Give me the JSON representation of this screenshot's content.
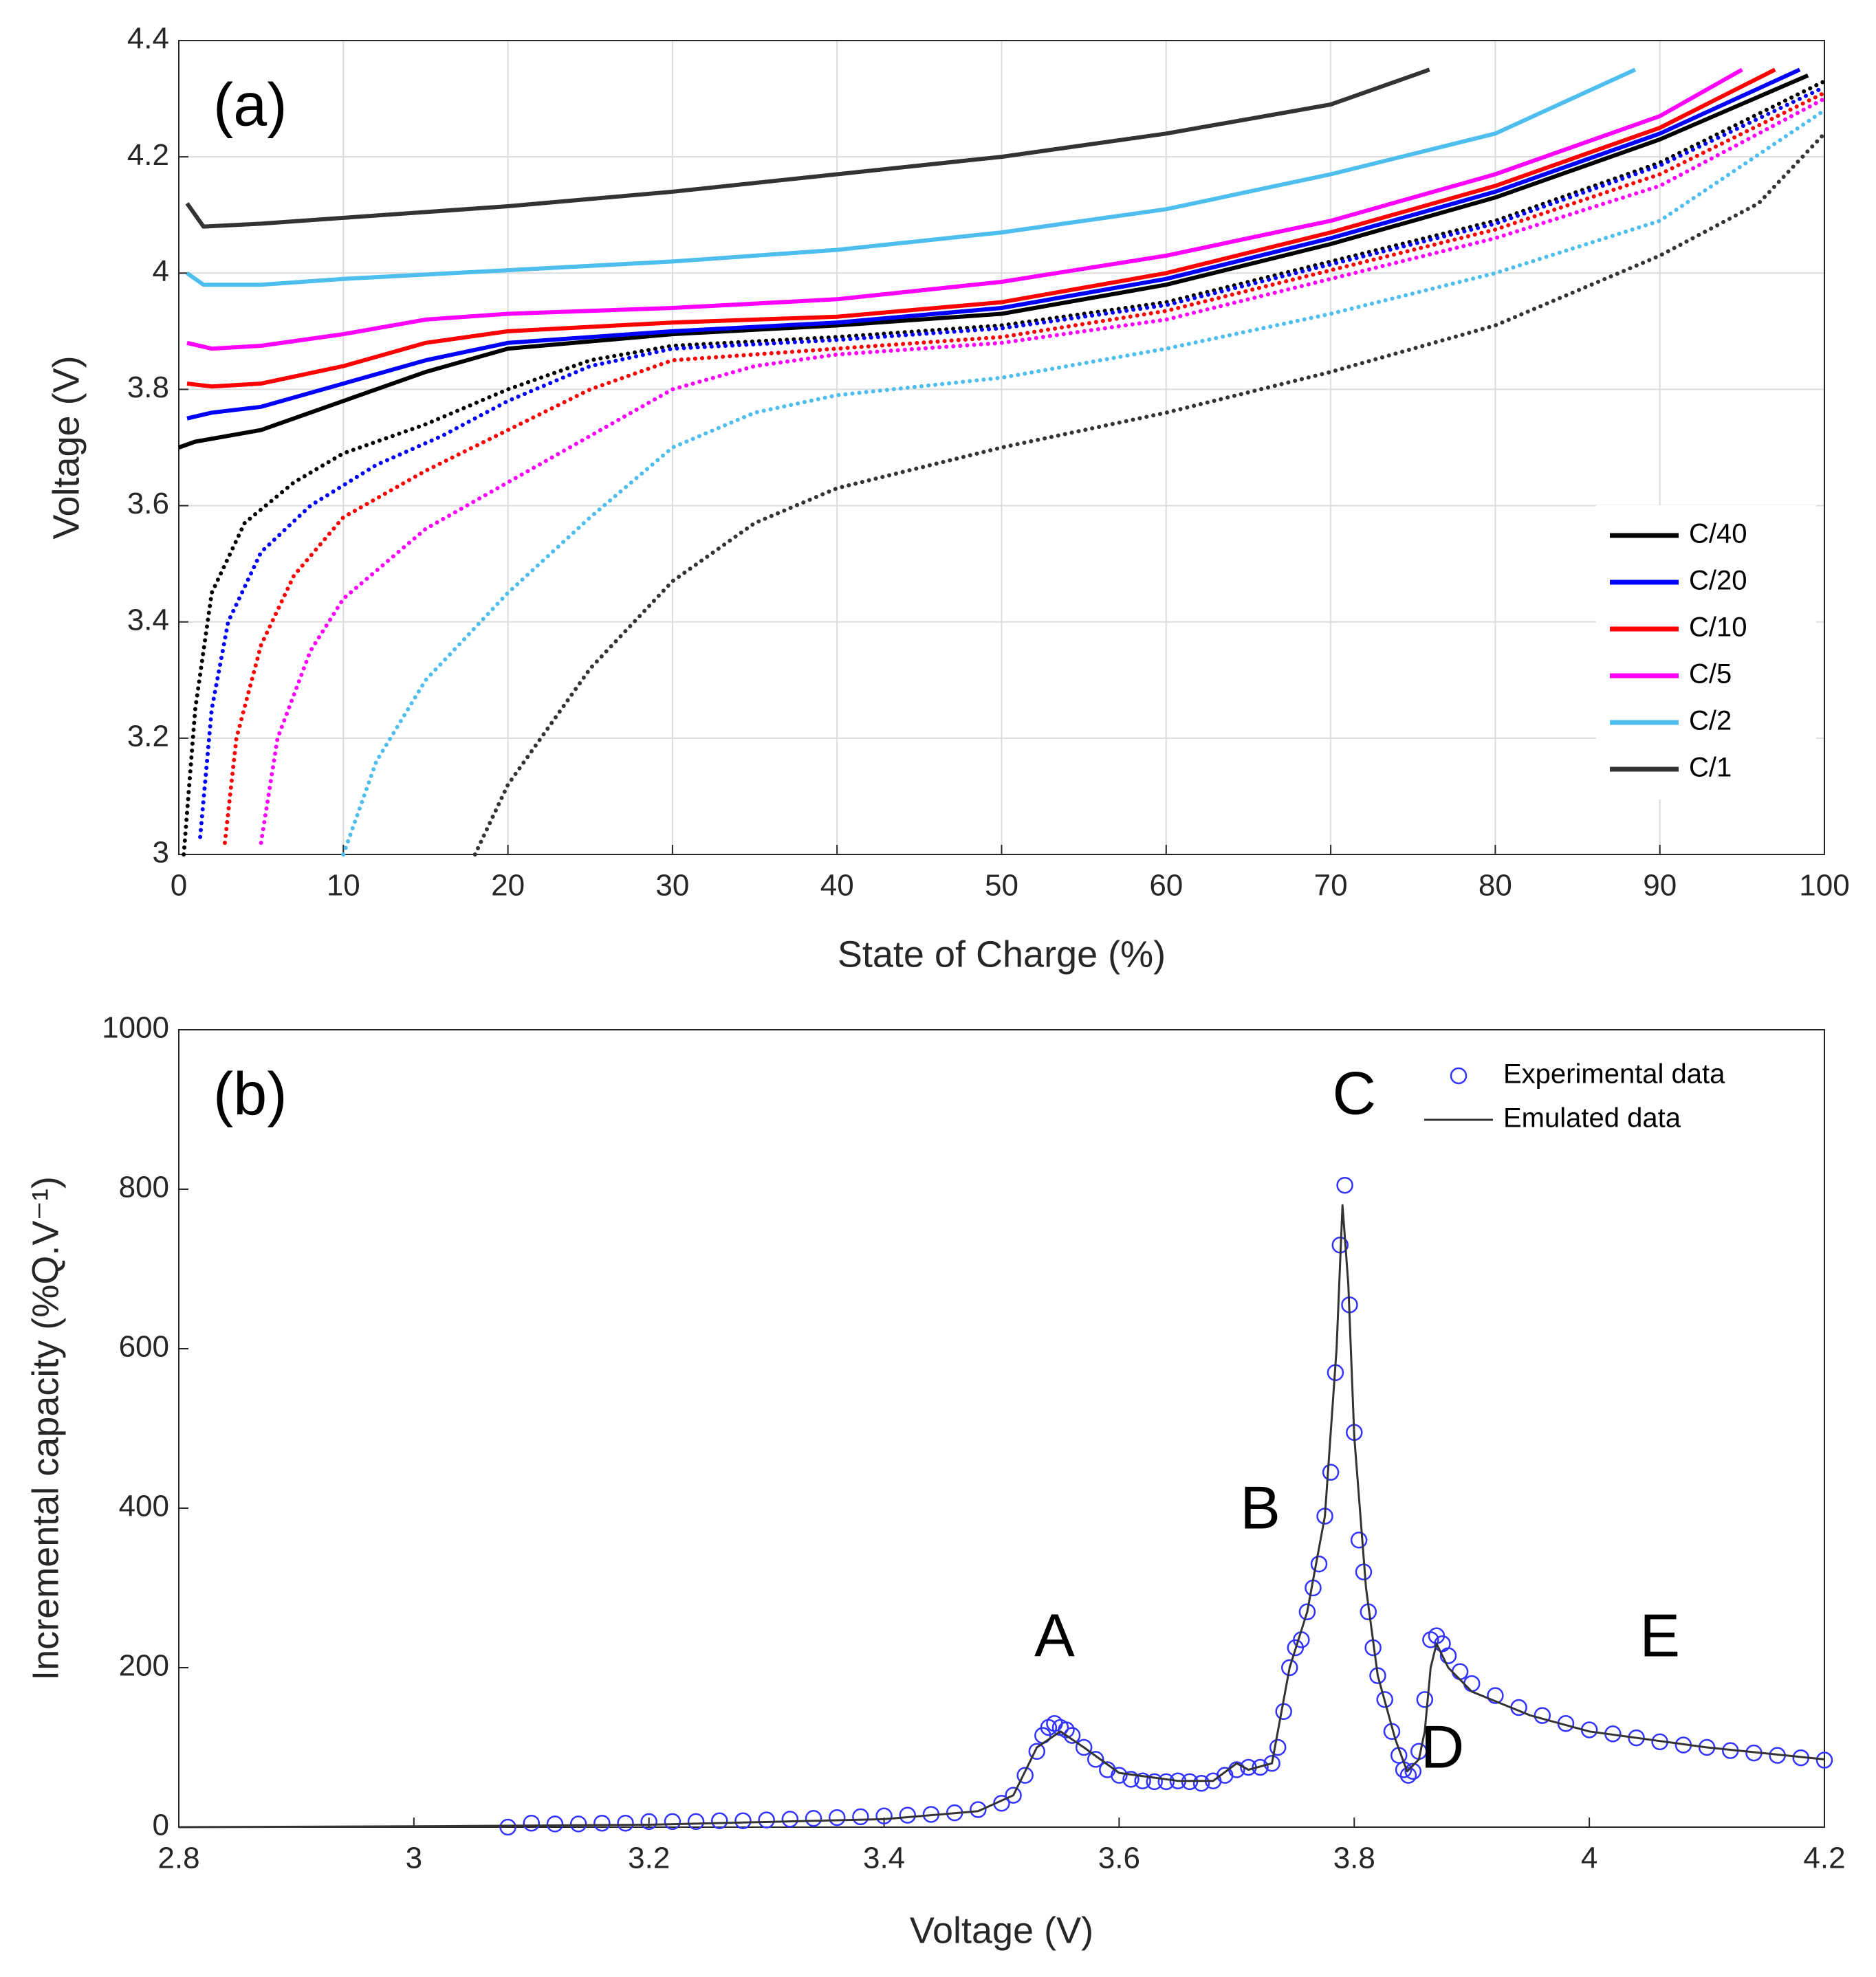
{
  "chart_data": [
    {
      "type": "line",
      "panel_label": "(a)",
      "x_label": "State of Charge (%)",
      "y_label": "Voltage (V)",
      "xlim": [
        0,
        100
      ],
      "ylim": [
        3,
        4.4
      ],
      "xticks": [
        0,
        10,
        20,
        30,
        40,
        50,
        60,
        70,
        80,
        90,
        100
      ],
      "yticks": [
        3,
        3.2,
        3.4,
        3.6,
        3.8,
        4,
        4.2,
        4.4
      ],
      "grid": true,
      "legend": "lower right",
      "series": [
        {
          "name": "C/40",
          "color": "#000000",
          "style": "solid",
          "x": [
            0,
            1,
            5,
            10,
            15,
            20,
            30,
            40,
            50,
            60,
            70,
            80,
            90,
            99
          ],
          "values": [
            3.7,
            3.71,
            3.73,
            3.78,
            3.83,
            3.87,
            3.895,
            3.91,
            3.93,
            3.98,
            4.05,
            4.13,
            4.23,
            4.34
          ]
        },
        {
          "name": "C/20",
          "color": "#0000ff",
          "style": "solid",
          "x": [
            0.5,
            2,
            5,
            10,
            15,
            20,
            30,
            40,
            50,
            60,
            70,
            80,
            90,
            98.5
          ],
          "values": [
            3.75,
            3.76,
            3.77,
            3.81,
            3.85,
            3.88,
            3.9,
            3.915,
            3.94,
            3.99,
            4.06,
            4.14,
            4.24,
            4.35
          ]
        },
        {
          "name": "C/10",
          "color": "#ff0000",
          "style": "solid",
          "x": [
            0.5,
            2,
            5,
            10,
            15,
            20,
            30,
            40,
            50,
            60,
            70,
            80,
            90,
            97
          ],
          "values": [
            3.81,
            3.805,
            3.81,
            3.84,
            3.88,
            3.9,
            3.915,
            3.925,
            3.95,
            4.0,
            4.07,
            4.15,
            4.25,
            4.35
          ]
        },
        {
          "name": "C/5",
          "color": "#ff00ff",
          "style": "solid",
          "x": [
            0.5,
            2,
            5,
            10,
            15,
            20,
            30,
            40,
            50,
            60,
            70,
            80,
            90,
            95
          ],
          "values": [
            3.88,
            3.87,
            3.875,
            3.895,
            3.92,
            3.93,
            3.94,
            3.955,
            3.985,
            4.03,
            4.09,
            4.17,
            4.27,
            4.35
          ]
        },
        {
          "name": "C/2",
          "color": "#4dbeee",
          "style": "solid",
          "x": [
            0.5,
            1.5,
            5,
            10,
            20,
            30,
            40,
            50,
            60,
            70,
            80,
            88.5
          ],
          "values": [
            4.0,
            3.98,
            3.98,
            3.99,
            4.005,
            4.02,
            4.04,
            4.07,
            4.11,
            4.17,
            4.24,
            4.35
          ]
        },
        {
          "name": "C/1",
          "color": "#333333",
          "style": "solid",
          "x": [
            0.5,
            1.5,
            5,
            10,
            20,
            30,
            40,
            50,
            60,
            70,
            76
          ],
          "values": [
            4.12,
            4.08,
            4.085,
            4.095,
            4.115,
            4.14,
            4.17,
            4.2,
            4.24,
            4.29,
            4.35
          ]
        },
        {
          "color": "#000000",
          "style": "dotted",
          "x": [
            0.3,
            1,
            2,
            4,
            7,
            10,
            15,
            20,
            25,
            30,
            40,
            50,
            60,
            70,
            80,
            90,
            100
          ],
          "values": [
            3.0,
            3.25,
            3.45,
            3.57,
            3.64,
            3.69,
            3.74,
            3.8,
            3.85,
            3.875,
            3.89,
            3.91,
            3.95,
            4.02,
            4.09,
            4.19,
            4.33
          ]
        },
        {
          "color": "#0000ff",
          "style": "dotted",
          "x": [
            1.3,
            2,
            3,
            5,
            8,
            12,
            16,
            20,
            25,
            30,
            40,
            50,
            60,
            70,
            80,
            90,
            100
          ],
          "values": [
            3.03,
            3.25,
            3.4,
            3.52,
            3.6,
            3.67,
            3.72,
            3.78,
            3.84,
            3.87,
            3.885,
            3.905,
            3.945,
            4.015,
            4.085,
            4.185,
            4.32
          ]
        },
        {
          "color": "#ff0000",
          "style": "dotted",
          "x": [
            2.8,
            3.5,
            5,
            7,
            10,
            15,
            20,
            25,
            30,
            40,
            50,
            60,
            70,
            80,
            90,
            100
          ],
          "values": [
            3.02,
            3.2,
            3.36,
            3.48,
            3.58,
            3.66,
            3.73,
            3.8,
            3.85,
            3.87,
            3.89,
            3.935,
            4.005,
            4.075,
            4.17,
            4.31
          ]
        },
        {
          "color": "#ff00ff",
          "style": "dotted",
          "x": [
            5,
            6,
            8,
            10,
            15,
            20,
            25,
            30,
            35,
            40,
            50,
            60,
            70,
            80,
            90,
            100
          ],
          "values": [
            3.02,
            3.2,
            3.35,
            3.44,
            3.56,
            3.64,
            3.72,
            3.8,
            3.84,
            3.86,
            3.88,
            3.92,
            3.99,
            4.06,
            4.15,
            4.3
          ]
        },
        {
          "color": "#4dbeee",
          "style": "dotted",
          "x": [
            10,
            12,
            15,
            20,
            25,
            30,
            35,
            40,
            50,
            60,
            70,
            80,
            90,
            100
          ],
          "values": [
            3.0,
            3.16,
            3.3,
            3.45,
            3.58,
            3.7,
            3.76,
            3.79,
            3.82,
            3.87,
            3.93,
            4.0,
            4.09,
            4.28
          ]
        },
        {
          "color": "#333333",
          "style": "dotted",
          "x": [
            18,
            20,
            25,
            30,
            35,
            40,
            50,
            60,
            70,
            80,
            90,
            96,
            100
          ],
          "values": [
            3.0,
            3.12,
            3.32,
            3.47,
            3.57,
            3.63,
            3.7,
            3.76,
            3.83,
            3.91,
            4.03,
            4.12,
            4.24
          ]
        }
      ]
    },
    {
      "type": "scatter",
      "panel_label": "(b)",
      "x_label": "Voltage (V)",
      "y_label": "Incremental capacity (%Q.V⁻¹)",
      "xlim": [
        2.8,
        4.2
      ],
      "ylim": [
        0,
        1000
      ],
      "xticks": [
        2.8,
        3,
        3.2,
        3.4,
        3.6,
        3.8,
        4,
        4.2
      ],
      "yticks": [
        0,
        200,
        400,
        600,
        800,
        1000
      ],
      "grid": false,
      "legend": "upper right",
      "annotations": [
        "A",
        "B",
        "C",
        "D",
        "E"
      ],
      "series": [
        {
          "name": "Experimental data",
          "color": "#3333ff",
          "style": "markers",
          "x": [
            3.08,
            3.1,
            3.12,
            3.14,
            3.16,
            3.18,
            3.2,
            3.22,
            3.24,
            3.26,
            3.28,
            3.3,
            3.32,
            3.34,
            3.36,
            3.38,
            3.4,
            3.42,
            3.44,
            3.46,
            3.48,
            3.5,
            3.51,
            3.52,
            3.53,
            3.535,
            3.54,
            3.545,
            3.55,
            3.555,
            3.56,
            3.57,
            3.58,
            3.59,
            3.6,
            3.61,
            3.62,
            3.63,
            3.64,
            3.65,
            3.66,
            3.67,
            3.68,
            3.69,
            3.7,
            3.71,
            3.72,
            3.73,
            3.735,
            3.74,
            3.745,
            3.75,
            3.755,
            3.76,
            3.765,
            3.77,
            3.775,
            3.78,
            3.784,
            3.788,
            3.792,
            3.796,
            3.8,
            3.804,
            3.808,
            3.812,
            3.816,
            3.82,
            3.826,
            3.832,
            3.838,
            3.842,
            3.846,
            3.85,
            3.855,
            3.86,
            3.865,
            3.87,
            3.875,
            3.88,
            3.89,
            3.9,
            3.92,
            3.94,
            3.96,
            3.98,
            4.0,
            4.02,
            4.04,
            4.06,
            4.08,
            4.1,
            4.12,
            4.14,
            4.16,
            4.18,
            4.2
          ],
          "values": [
            0,
            5,
            4,
            4,
            5,
            5,
            7,
            7,
            7,
            8,
            8,
            9,
            10,
            11,
            12,
            13,
            14,
            15,
            16,
            18,
            22,
            30,
            40,
            65,
            95,
            115,
            125,
            130,
            125,
            122,
            115,
            100,
            85,
            72,
            65,
            60,
            58,
            57,
            57,
            58,
            57,
            55,
            58,
            65,
            72,
            75,
            75,
            80,
            100,
            145,
            200,
            225,
            235,
            270,
            300,
            330,
            390,
            445,
            570,
            730,
            805,
            655,
            495,
            360,
            320,
            270,
            225,
            190,
            160,
            120,
            90,
            72,
            65,
            70,
            95,
            160,
            235,
            240,
            230,
            215,
            195,
            180,
            165,
            150,
            140,
            130,
            122,
            117,
            112,
            107,
            103,
            100,
            96,
            93,
            90,
            87,
            84
          ]
        },
        {
          "name": "Emulated data",
          "color": "#333333",
          "style": "line",
          "x": [
            2.8,
            3.0,
            3.2,
            3.4,
            3.48,
            3.51,
            3.53,
            3.55,
            3.57,
            3.6,
            3.65,
            3.68,
            3.7,
            3.71,
            3.73,
            3.745,
            3.76,
            3.775,
            3.785,
            3.79,
            3.795,
            3.8,
            3.81,
            3.82,
            3.835,
            3.845,
            3.855,
            3.86,
            3.865,
            3.87,
            3.88,
            3.9,
            3.95,
            4.0,
            4.1,
            4.2
          ],
          "values": [
            0,
            1,
            3,
            10,
            20,
            40,
            100,
            120,
            100,
            68,
            58,
            58,
            80,
            72,
            80,
            200,
            270,
            390,
            600,
            780,
            680,
            490,
            300,
            190,
            110,
            70,
            85,
            120,
            200,
            230,
            200,
            170,
            140,
            120,
            100,
            85
          ]
        }
      ]
    }
  ]
}
